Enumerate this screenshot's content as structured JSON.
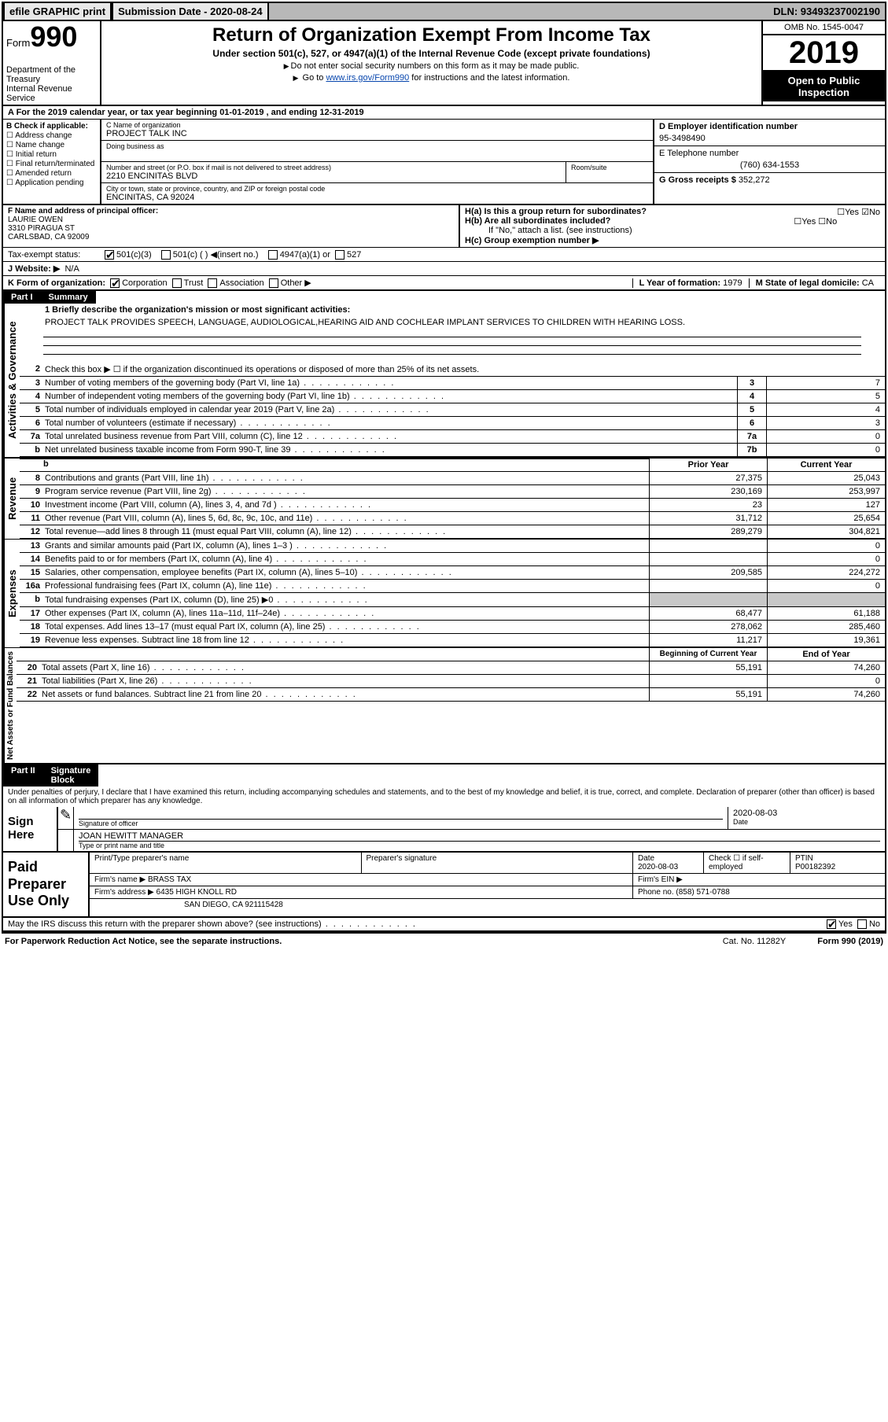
{
  "topbar": {
    "efile": "efile GRAPHIC print",
    "submission": "Submission Date - 2020-08-24",
    "dln": "DLN: 93493237002190"
  },
  "header": {
    "form_word": "Form",
    "form_num": "990",
    "dept": "Department of the Treasury\nInternal Revenue Service",
    "title": "Return of Organization Exempt From Income Tax",
    "sub": "Under section 501(c), 527, or 4947(a)(1) of the Internal Revenue Code (except private foundations)",
    "note1": "Do not enter social security numbers on this form as it may be made public.",
    "note2_pre": "Go to ",
    "note2_link": "www.irs.gov/Form990",
    "note2_post": " for instructions and the latest information.",
    "omb": "OMB No. 1545-0047",
    "year": "2019",
    "inspection": "Open to Public Inspection"
  },
  "row_a": "A For the 2019 calendar year, or tax year beginning 01-01-2019    , and ending 12-31-2019",
  "checkboxes": {
    "label": "B Check if applicable:",
    "items": [
      "Address change",
      "Name change",
      "Initial return",
      "Final return/terminated",
      "Amended return",
      "Application pending"
    ]
  },
  "org": {
    "name_label": "C Name of organization",
    "name": "PROJECT TALK INC",
    "dba_label": "Doing business as",
    "addr_label": "Number and street (or P.O. box if mail is not delivered to street address)",
    "room_label": "Room/suite",
    "addr": "2210 ENCINITAS BLVD",
    "city_label": "City or town, state or province, country, and ZIP or foreign postal code",
    "city": "ENCINITAS, CA  92024"
  },
  "right_info": {
    "ein_label": "D Employer identification number",
    "ein": "95-3498490",
    "phone_label": "E Telephone number",
    "phone": "(760) 634-1553",
    "gross_label": "G Gross receipts $",
    "gross": "352,272"
  },
  "officer": {
    "label": "F  Name and address of principal officer:",
    "name": "LAURIE OWEN",
    "addr1": "3310 PIRAGUA ST",
    "addr2": "CARLSBAD, CA  92009"
  },
  "h_section": {
    "ha": "H(a)  Is this a group return for subordinates?",
    "hb": "H(b)  Are all subordinates included?",
    "hb_note": "If \"No,\" attach a list. (see instructions)",
    "hc": "H(c)  Group exemption number ▶",
    "yes": "Yes",
    "no": "No"
  },
  "tax_status": {
    "label": "Tax-exempt status:",
    "c3": "501(c)(3)",
    "c": "501(c) (  ) ◀(insert no.)",
    "a1": "4947(a)(1) or",
    "s527": "527"
  },
  "website": {
    "label": "J   Website: ▶",
    "val": "N/A"
  },
  "form_org": {
    "label": "K Form of organization:",
    "corp": "Corporation",
    "trust": "Trust",
    "assoc": "Association",
    "other": "Other ▶"
  },
  "year_formed": {
    "label": "L Year of formation:",
    "val": "1979"
  },
  "domicile": {
    "label": "M State of legal domicile:",
    "val": "CA"
  },
  "part1": {
    "num": "Part I",
    "title": "Summary"
  },
  "mission": {
    "label": "1   Briefly describe the organization's mission or most significant activities:",
    "text": "PROJECT TALK PROVIDES SPEECH, LANGUAGE, AUDIOLOGICAL,HEARING AID AND COCHLEAR IMPLANT SERVICES TO CHILDREN WITH HEARING LOSS."
  },
  "activities": {
    "line2": "Check this box ▶ ☐  if the organization discontinued its operations or disposed of more than 25% of its net assets.",
    "rows": [
      {
        "n": "3",
        "t": "Number of voting members of the governing body (Part VI, line 1a)",
        "bn": "3",
        "v": "7"
      },
      {
        "n": "4",
        "t": "Number of independent voting members of the governing body (Part VI, line 1b)",
        "bn": "4",
        "v": "5"
      },
      {
        "n": "5",
        "t": "Total number of individuals employed in calendar year 2019 (Part V, line 2a)",
        "bn": "5",
        "v": "4"
      },
      {
        "n": "6",
        "t": "Total number of volunteers (estimate if necessary)",
        "bn": "6",
        "v": "3"
      },
      {
        "n": "7a",
        "t": "Total unrelated business revenue from Part VIII, column (C), line 12",
        "bn": "7a",
        "v": "0"
      },
      {
        "n": "b",
        "t": "Net unrelated business taxable income from Form 990-T, line 39",
        "bn": "7b",
        "v": "0"
      }
    ]
  },
  "col_hdrs": {
    "prior": "Prior Year",
    "current": "Current Year"
  },
  "revenue": {
    "label": "Revenue",
    "rows": [
      {
        "n": "8",
        "t": "Contributions and grants (Part VIII, line 1h)",
        "p": "27,375",
        "c": "25,043"
      },
      {
        "n": "9",
        "t": "Program service revenue (Part VIII, line 2g)",
        "p": "230,169",
        "c": "253,997"
      },
      {
        "n": "10",
        "t": "Investment income (Part VIII, column (A), lines 3, 4, and 7d )",
        "p": "23",
        "c": "127"
      },
      {
        "n": "11",
        "t": "Other revenue (Part VIII, column (A), lines 5, 6d, 8c, 9c, 10c, and 11e)",
        "p": "31,712",
        "c": "25,654"
      },
      {
        "n": "12",
        "t": "Total revenue—add lines 8 through 11 (must equal Part VIII, column (A), line 12)",
        "p": "289,279",
        "c": "304,821"
      }
    ]
  },
  "expenses": {
    "label": "Expenses",
    "rows": [
      {
        "n": "13",
        "t": "Grants and similar amounts paid (Part IX, column (A), lines 1–3 )",
        "p": "",
        "c": "0"
      },
      {
        "n": "14",
        "t": "Benefits paid to or for members (Part IX, column (A), line 4)",
        "p": "",
        "c": "0"
      },
      {
        "n": "15",
        "t": "Salaries, other compensation, employee benefits (Part IX, column (A), lines 5–10)",
        "p": "209,585",
        "c": "224,272"
      },
      {
        "n": "16a",
        "t": "Professional fundraising fees (Part IX, column (A), line 11e)",
        "p": "",
        "c": "0"
      },
      {
        "n": "b",
        "t": "Total fundraising expenses (Part IX, column (D), line 25) ▶0",
        "p": "shade",
        "c": "shade"
      },
      {
        "n": "17",
        "t": "Other expenses (Part IX, column (A), lines 11a–11d, 11f–24e)",
        "p": "68,477",
        "c": "61,188"
      },
      {
        "n": "18",
        "t": "Total expenses. Add lines 13–17 (must equal Part IX, column (A), line 25)",
        "p": "278,062",
        "c": "285,460"
      },
      {
        "n": "19",
        "t": "Revenue less expenses. Subtract line 18 from line 12",
        "p": "11,217",
        "c": "19,361"
      }
    ]
  },
  "netassets": {
    "label": "Net Assets or Fund Balances",
    "hdr_begin": "Beginning of Current Year",
    "hdr_end": "End of Year",
    "rows": [
      {
        "n": "20",
        "t": "Total assets (Part X, line 16)",
        "p": "55,191",
        "c": "74,260"
      },
      {
        "n": "21",
        "t": "Total liabilities (Part X, line 26)",
        "p": "",
        "c": "0"
      },
      {
        "n": "22",
        "t": "Net assets or fund balances. Subtract line 21 from line 20",
        "p": "55,191",
        "c": "74,260"
      }
    ]
  },
  "part2": {
    "num": "Part II",
    "title": "Signature Block"
  },
  "sig_text": "Under penalties of perjury, I declare that I have examined this return, including accompanying schedules and statements, and to the best of my knowledge and belief, it is true, correct, and complete. Declaration of preparer (other than officer) is based on all information of which preparer has any knowledge.",
  "sign": {
    "here": "Sign Here",
    "sig_label": "Signature of officer",
    "date": "2020-08-03",
    "date_label": "Date",
    "name": "JOAN HEWITT MANAGER",
    "name_label": "Type or print name and title"
  },
  "prep": {
    "label": "Paid Preparer Use Only",
    "r1_name": "Print/Type preparer's name",
    "r1_sig": "Preparer's signature",
    "r1_date_label": "Date",
    "r1_date": "2020-08-03",
    "r1_check": "Check ☐  if self-employed",
    "r1_ptin_label": "PTIN",
    "r1_ptin": "P00182392",
    "r2_firm_label": "Firm's name    ▶",
    "r2_firm": "BRASS TAX",
    "r2_ein_label": "Firm's EIN ▶",
    "r3_addr_label": "Firm's address ▶",
    "r3_addr": "6435 HIGH KNOLL RD",
    "r3_phone_label": "Phone no.",
    "r3_phone": "(858) 571-0788",
    "r4_city": "SAN DIEGO, CA  921115428"
  },
  "discuss": "May the IRS discuss this return with the preparer shown above? (see instructions)",
  "footer": {
    "left": "For Paperwork Reduction Act Notice, see the separate instructions.",
    "mid": "Cat. No. 11282Y",
    "right": "Form 990 (2019)"
  }
}
